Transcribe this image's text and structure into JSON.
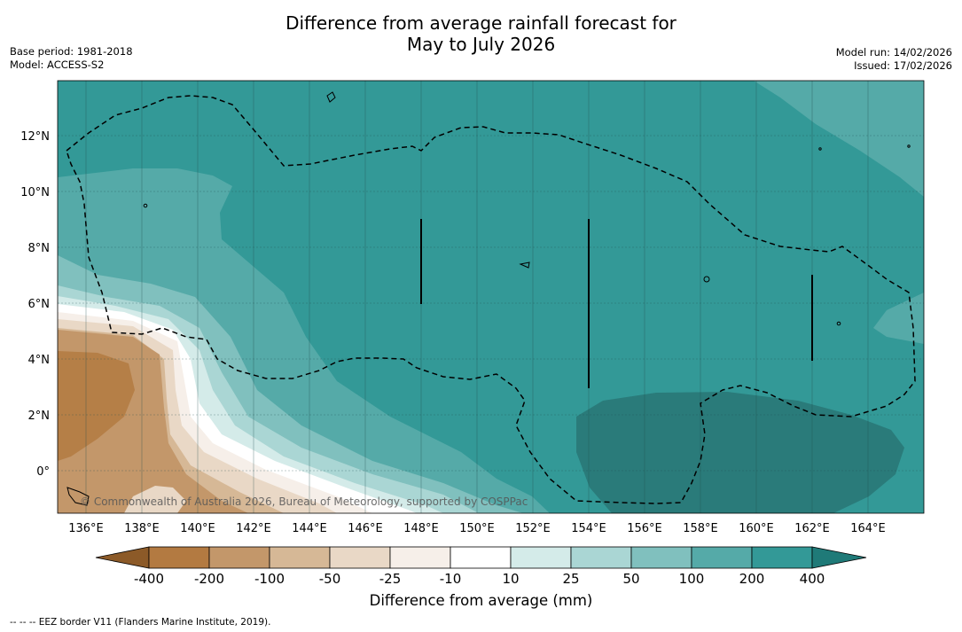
{
  "title": {
    "line1": "Difference from average rainfall forecast for",
    "line2": "May to July 2026"
  },
  "meta_left": {
    "base_period": "Base period: 1981-2018",
    "model": "Model: ACCESS-S2"
  },
  "meta_right": {
    "model_run": "Model run: 14/02/2026",
    "issued": "Issued: 17/02/2026"
  },
  "map": {
    "lon_labels": [
      "136°E",
      "138°E",
      "140°E",
      "142°E",
      "144°E",
      "146°E",
      "148°E",
      "150°E",
      "152°E",
      "154°E",
      "156°E",
      "158°E",
      "160°E",
      "162°E",
      "164°E"
    ],
    "lat_labels": [
      "12°N",
      "10°N",
      "8°N",
      "6°N",
      "4°N",
      "2°N",
      "0°"
    ],
    "credit": "© Commonwealth of Australia 2026, Bureau of Meteorology, supported by COSPPac"
  },
  "colorbar": {
    "title": "Difference from average (mm)",
    "ticks": [
      "-400",
      "-200",
      "-100",
      "-50",
      "-25",
      "-10",
      "10",
      "25",
      "50",
      "100",
      "200",
      "400"
    ],
    "colors": [
      "#8c5a28",
      "#b37a41",
      "#c3976a",
      "#d6b896",
      "#e9d8c6",
      "#f6efe9",
      "#ffffff",
      "#d4ebe9",
      "#aad6d4",
      "#80c0be",
      "#55aaa8",
      "#339997",
      "#1f7a78"
    ]
  },
  "footnote": "--  --  -- EEZ border V11 (Flanders Marine Institute, 2019)."
}
